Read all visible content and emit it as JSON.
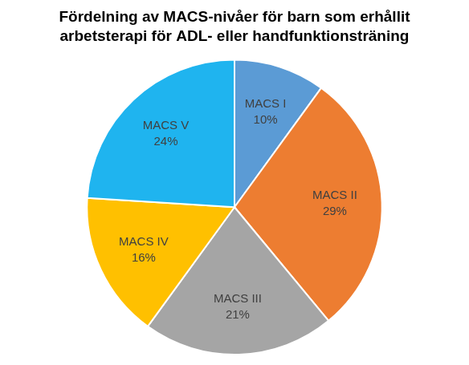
{
  "chart_data": {
    "type": "pie",
    "title": [
      "Fördelning av MACS-nivåer för barn som erhållit",
      "arbetsterapi för ADL- eller handfunktionsträning"
    ],
    "categories": [
      "MACS I",
      "MACS II",
      "MACS III",
      "MACS IV",
      "MACS V"
    ],
    "values": [
      10,
      29,
      21,
      16,
      24
    ],
    "value_labels": [
      "10%",
      "29%",
      "21%",
      "16%",
      "24%"
    ],
    "colors": [
      "#5b9bd5",
      "#ed7d31",
      "#a5a5a5",
      "#ffc000",
      "#1fb4ef"
    ],
    "data_labels": true
  }
}
